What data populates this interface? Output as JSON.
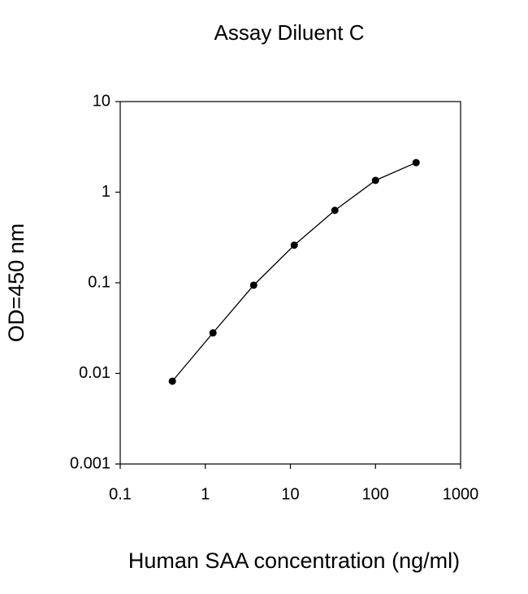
{
  "chart_data": {
    "type": "line",
    "title": "Assay Diluent C",
    "x_label": "Human SAA concentration (ng/ml)",
    "y_label": "OD=450 nm",
    "x": [
      0.41,
      1.23,
      3.7,
      11.1,
      33.3,
      100,
      300
    ],
    "values": [
      0.0082,
      0.028,
      0.094,
      0.26,
      0.63,
      1.35,
      2.12
    ],
    "color": "#000000",
    "xscale": "log",
    "yscale": "log",
    "xlim": [
      0.1,
      1000
    ],
    "xticks": [
      0.1,
      1,
      10,
      100,
      1000
    ],
    "ylim": [
      0.001,
      10
    ],
    "yticks": [
      0.001,
      0.01,
      0.1,
      1,
      10
    ]
  }
}
